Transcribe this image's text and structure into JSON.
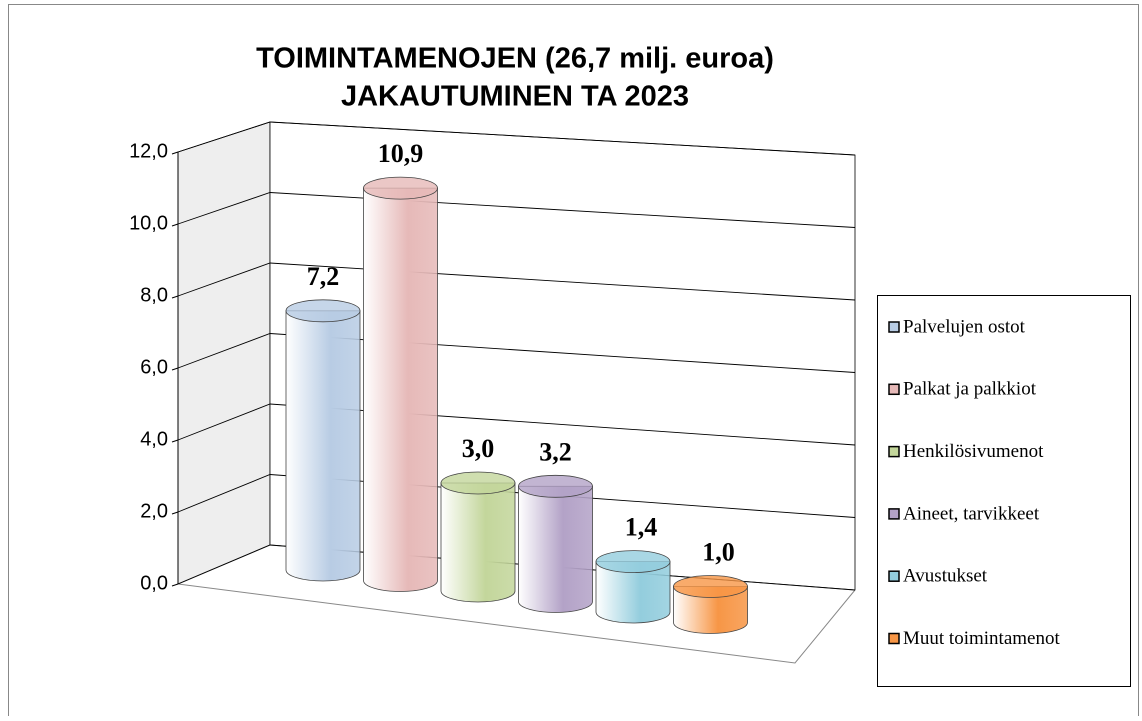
{
  "chart_data": {
    "type": "cylinder",
    "title": [
      "TOIMINTAMENOJEN (26,7 milj. euroa)",
      "JAKAUTUMINEN TA 2023"
    ],
    "series": [
      {
        "name": "Palvelujen ostot",
        "color": "#b8cce4",
        "values": [
          7.2
        ],
        "value_labels": [
          "7,2"
        ]
      },
      {
        "name": "Palkat ja palkkiot",
        "color": "#e6b9b8",
        "values": [
          10.9
        ],
        "value_labels": [
          "10,9"
        ]
      },
      {
        "name": "Henkilösivumenot",
        "color": "#c3d69b",
        "values": [
          3.0
        ],
        "value_labels": [
          "3,0"
        ]
      },
      {
        "name": "Aineet, tarvikkeet",
        "color": "#b3a2c7",
        "values": [
          3.2
        ],
        "value_labels": [
          "3,2"
        ]
      },
      {
        "name": "Avustukset",
        "color": "#93cddd",
        "values": [
          1.4
        ],
        "value_labels": [
          "1,4"
        ]
      },
      {
        "name": "Muut toimintamenot",
        "color": "#f79646",
        "values": [
          1.0
        ],
        "value_labels": [
          "1,0"
        ]
      }
    ],
    "ylim": [
      0,
      12
    ],
    "yticks": [
      {
        "value": 0,
        "label": "0,0"
      },
      {
        "value": 2,
        "label": "2,0"
      },
      {
        "value": 4,
        "label": "4,0"
      },
      {
        "value": 6,
        "label": "6,0"
      },
      {
        "value": 8,
        "label": "8,0"
      },
      {
        "value": 10,
        "label": "10,0"
      },
      {
        "value": 12,
        "label": "12,0"
      }
    ],
    "grid": true,
    "legend": "right"
  }
}
